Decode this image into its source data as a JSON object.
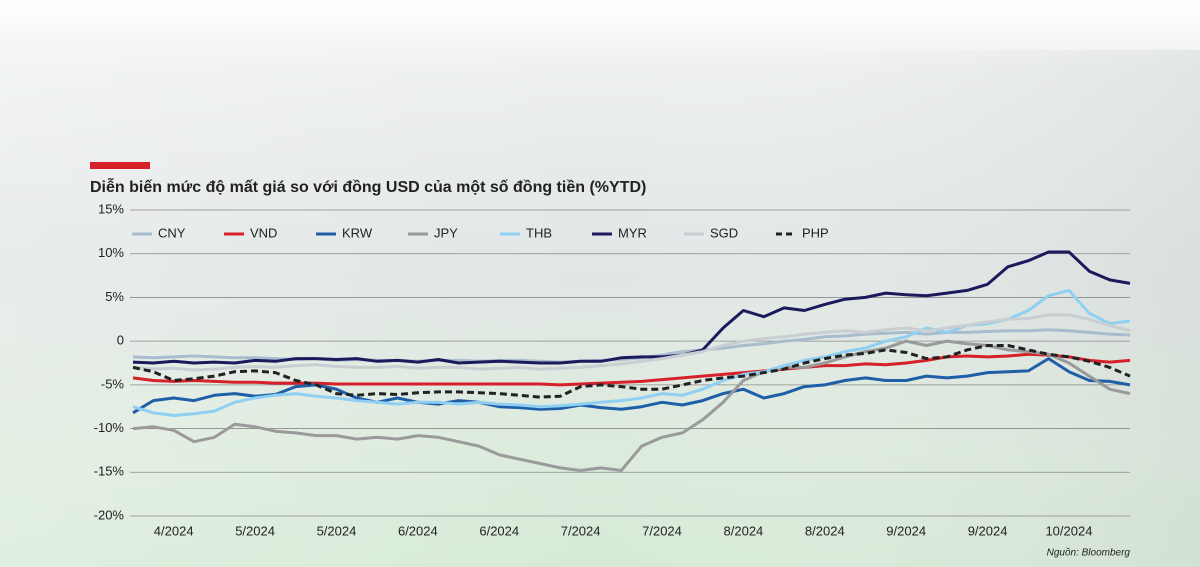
{
  "chart_data": {
    "type": "line",
    "title": "Diễn biến mức độ mất giá so với đồng USD của một số đồng tiền (%YTD)",
    "source": "Nguồn: Bloomberg",
    "categories": [
      null,
      null,
      "4/2024",
      null,
      null,
      null,
      "5/2024",
      null,
      null,
      null,
      "5/2024",
      null,
      null,
      null,
      "6/2024",
      null,
      null,
      null,
      "6/2024",
      null,
      null,
      null,
      "7/2024",
      null,
      null,
      null,
      "7/2024",
      null,
      null,
      null,
      "8/2024",
      null,
      null,
      null,
      "8/2024",
      null,
      null,
      null,
      "9/2024",
      null,
      null,
      null,
      "9/2024",
      null,
      null,
      null,
      "10/2024",
      null,
      null,
      null
    ],
    "ylim": [
      -20,
      15
    ],
    "yticks": [
      {
        "value": 15,
        "label": "15%"
      },
      {
        "value": 10,
        "label": "10%"
      },
      {
        "value": 5,
        "label": "5%"
      },
      0,
      {
        "value": -5,
        "label": "-5%"
      },
      {
        "value": -10,
        "label": "-10%"
      },
      {
        "value": -15,
        "label": "-15%"
      },
      {
        "value": -20,
        "label": "-20%"
      }
    ],
    "grid": true,
    "series": [
      {
        "name": "CNY",
        "color": "#a9bccd",
        "values": [
          -1.8,
          -1.9,
          -1.8,
          -1.7,
          -1.8,
          -1.9,
          -1.9,
          -2.0,
          -2.1,
          -2.0,
          -2.2,
          -2.1,
          -2.2,
          -2.2,
          -2.3,
          -2.2,
          -2.2,
          -2.3,
          -2.2,
          -2.2,
          -2.3,
          -2.4,
          -2.3,
          -2.2,
          -2.1,
          -1.9,
          -1.6,
          -1.2,
          -1.0,
          -0.8,
          -0.5,
          -0.3,
          0,
          0.2,
          0.5,
          0.6,
          0.8,
          0.9,
          1.0,
          0.8,
          1.0,
          1.0,
          1.1,
          1.2,
          1.2,
          1.3,
          1.2,
          1.0,
          0.8,
          0.7
        ]
      },
      {
        "name": "VND",
        "color": "#d6202a",
        "values": [
          -4.2,
          -4.5,
          -4.6,
          -4.5,
          -4.6,
          -4.7,
          -4.7,
          -4.8,
          -4.8,
          -4.8,
          -4.9,
          -4.9,
          -4.9,
          -4.9,
          -4.9,
          -4.9,
          -4.9,
          -4.9,
          -4.9,
          -4.9,
          -4.9,
          -5.0,
          -4.9,
          -4.8,
          -4.7,
          -4.6,
          -4.4,
          -4.2,
          -4.0,
          -3.8,
          -3.6,
          -3.4,
          -3.2,
          -3.0,
          -2.8,
          -2.8,
          -2.6,
          -2.7,
          -2.5,
          -2.2,
          -1.8,
          -1.7,
          -1.8,
          -1.7,
          -1.5,
          -1.6,
          -1.8,
          -2.2,
          -2.4,
          -2.2
        ]
      },
      {
        "name": "KRW",
        "color": "#1f5fa8",
        "values": [
          -8.2,
          -6.8,
          -6.5,
          -6.8,
          -6.2,
          -6.0,
          -6.3,
          -6.1,
          -5.2,
          -5.0,
          -5.5,
          -6.5,
          -7.0,
          -6.5,
          -7.0,
          -7.2,
          -6.8,
          -7.0,
          -7.5,
          -7.6,
          -7.8,
          -7.7,
          -7.3,
          -7.6,
          -7.8,
          -7.5,
          -7.0,
          -7.3,
          -6.8,
          -6.0,
          -5.5,
          -6.5,
          -6.0,
          -5.2,
          -5.0,
          -4.5,
          -4.2,
          -4.5,
          -4.5,
          -4.0,
          -4.2,
          -4.0,
          -3.6,
          -3.5,
          -3.4,
          -2.0,
          -3.5,
          -4.5,
          -4.6,
          -5.0
        ]
      },
      {
        "name": "JPY",
        "color": "#9a9a9a",
        "values": [
          -10.0,
          -9.8,
          -10.2,
          -11.5,
          -11.0,
          -9.5,
          -9.8,
          -10.3,
          -10.5,
          -10.8,
          -10.8,
          -11.2,
          -11.0,
          -11.2,
          -10.8,
          -11.0,
          -11.5,
          -12.0,
          -13.0,
          -13.5,
          -14.0,
          -14.5,
          -14.8,
          -14.5,
          -14.8,
          -12.0,
          -11.0,
          -10.5,
          -9.0,
          -7.0,
          -4.5,
          -3.5,
          -3.0,
          -3.0,
          -2.5,
          -1.8,
          -1.2,
          -0.8,
          0,
          -0.5,
          0,
          -0.3,
          -0.5,
          -1.0,
          -1.2,
          -1.5,
          -2.5,
          -4.0,
          -5.5,
          -6.0
        ]
      },
      {
        "name": "THB",
        "color": "#8fd0f2",
        "values": [
          -7.5,
          -8.2,
          -8.5,
          -8.3,
          -8.0,
          -7.0,
          -6.5,
          -6.2,
          -6.0,
          -6.3,
          -6.5,
          -6.8,
          -7.0,
          -7.2,
          -7.0,
          -7.0,
          -7.2,
          -7.0,
          -7.2,
          -7.3,
          -7.5,
          -7.4,
          -7.2,
          -7.0,
          -6.8,
          -6.5,
          -6.0,
          -6.2,
          -5.5,
          -4.5,
          -3.8,
          -3.5,
          -2.8,
          -2.2,
          -1.8,
          -1.2,
          -0.8,
          0,
          0.5,
          1.5,
          1.0,
          1.8,
          2.0,
          2.5,
          3.5,
          5.2,
          5.8,
          3.2,
          2.0,
          2.3
        ]
      },
      {
        "name": "MYR",
        "color": "#1b1a5c",
        "values": [
          -2.4,
          -2.5,
          -2.3,
          -2.5,
          -2.4,
          -2.5,
          -2.2,
          -2.3,
          -2.0,
          -2.0,
          -2.1,
          -2.0,
          -2.3,
          -2.2,
          -2.4,
          -2.1,
          -2.5,
          -2.4,
          -2.3,
          -2.4,
          -2.5,
          -2.5,
          -2.3,
          -2.3,
          -1.9,
          -1.8,
          -1.8,
          -1.6,
          -1.0,
          1.5,
          3.5,
          2.8,
          3.8,
          3.5,
          4.2,
          4.8,
          5.0,
          5.5,
          5.3,
          5.2,
          5.5,
          5.8,
          6.5,
          8.5,
          9.2,
          10.2,
          10.2,
          8.0,
          7.0,
          6.6
        ]
      },
      {
        "name": "SGD",
        "color": "#c9ced3",
        "values": [
          -3.0,
          -3.2,
          -3.1,
          -3.3,
          -3.2,
          -3.0,
          -2.9,
          -3.0,
          -2.8,
          -2.7,
          -2.9,
          -3.0,
          -3.0,
          -2.9,
          -3.1,
          -3.0,
          -3.0,
          -3.2,
          -3.1,
          -3.0,
          -3.2,
          -3.1,
          -3.0,
          -2.8,
          -2.6,
          -2.3,
          -2.0,
          -1.6,
          -1.2,
          -0.5,
          0.0,
          0.3,
          0.5,
          0.8,
          1.0,
          1.2,
          1.0,
          1.3,
          1.5,
          1.2,
          1.5,
          1.8,
          2.2,
          2.5,
          2.6,
          3.0,
          3.0,
          2.5,
          1.8,
          1.2
        ]
      },
      {
        "name": "PHP",
        "color": "#222222",
        "dashed": true,
        "values": [
          -3.0,
          -3.5,
          -4.5,
          -4.3,
          -4.0,
          -3.5,
          -3.4,
          -3.6,
          -4.5,
          -5.0,
          -6.0,
          -6.2,
          -6.0,
          -6.1,
          -5.9,
          -5.8,
          -5.8,
          -5.9,
          -6.0,
          -6.2,
          -6.4,
          -6.3,
          -5.2,
          -5.0,
          -5.2,
          -5.5,
          -5.5,
          -5.0,
          -4.5,
          -4.2,
          -4.0,
          -3.6,
          -3.2,
          -2.5,
          -2.0,
          -1.6,
          -1.4,
          -1.0,
          -1.3,
          -2.0,
          -1.8,
          -1.0,
          -0.5,
          -0.5,
          -1.0,
          -1.5,
          -1.8,
          -2.3,
          -3.0,
          -4.0
        ]
      }
    ]
  }
}
